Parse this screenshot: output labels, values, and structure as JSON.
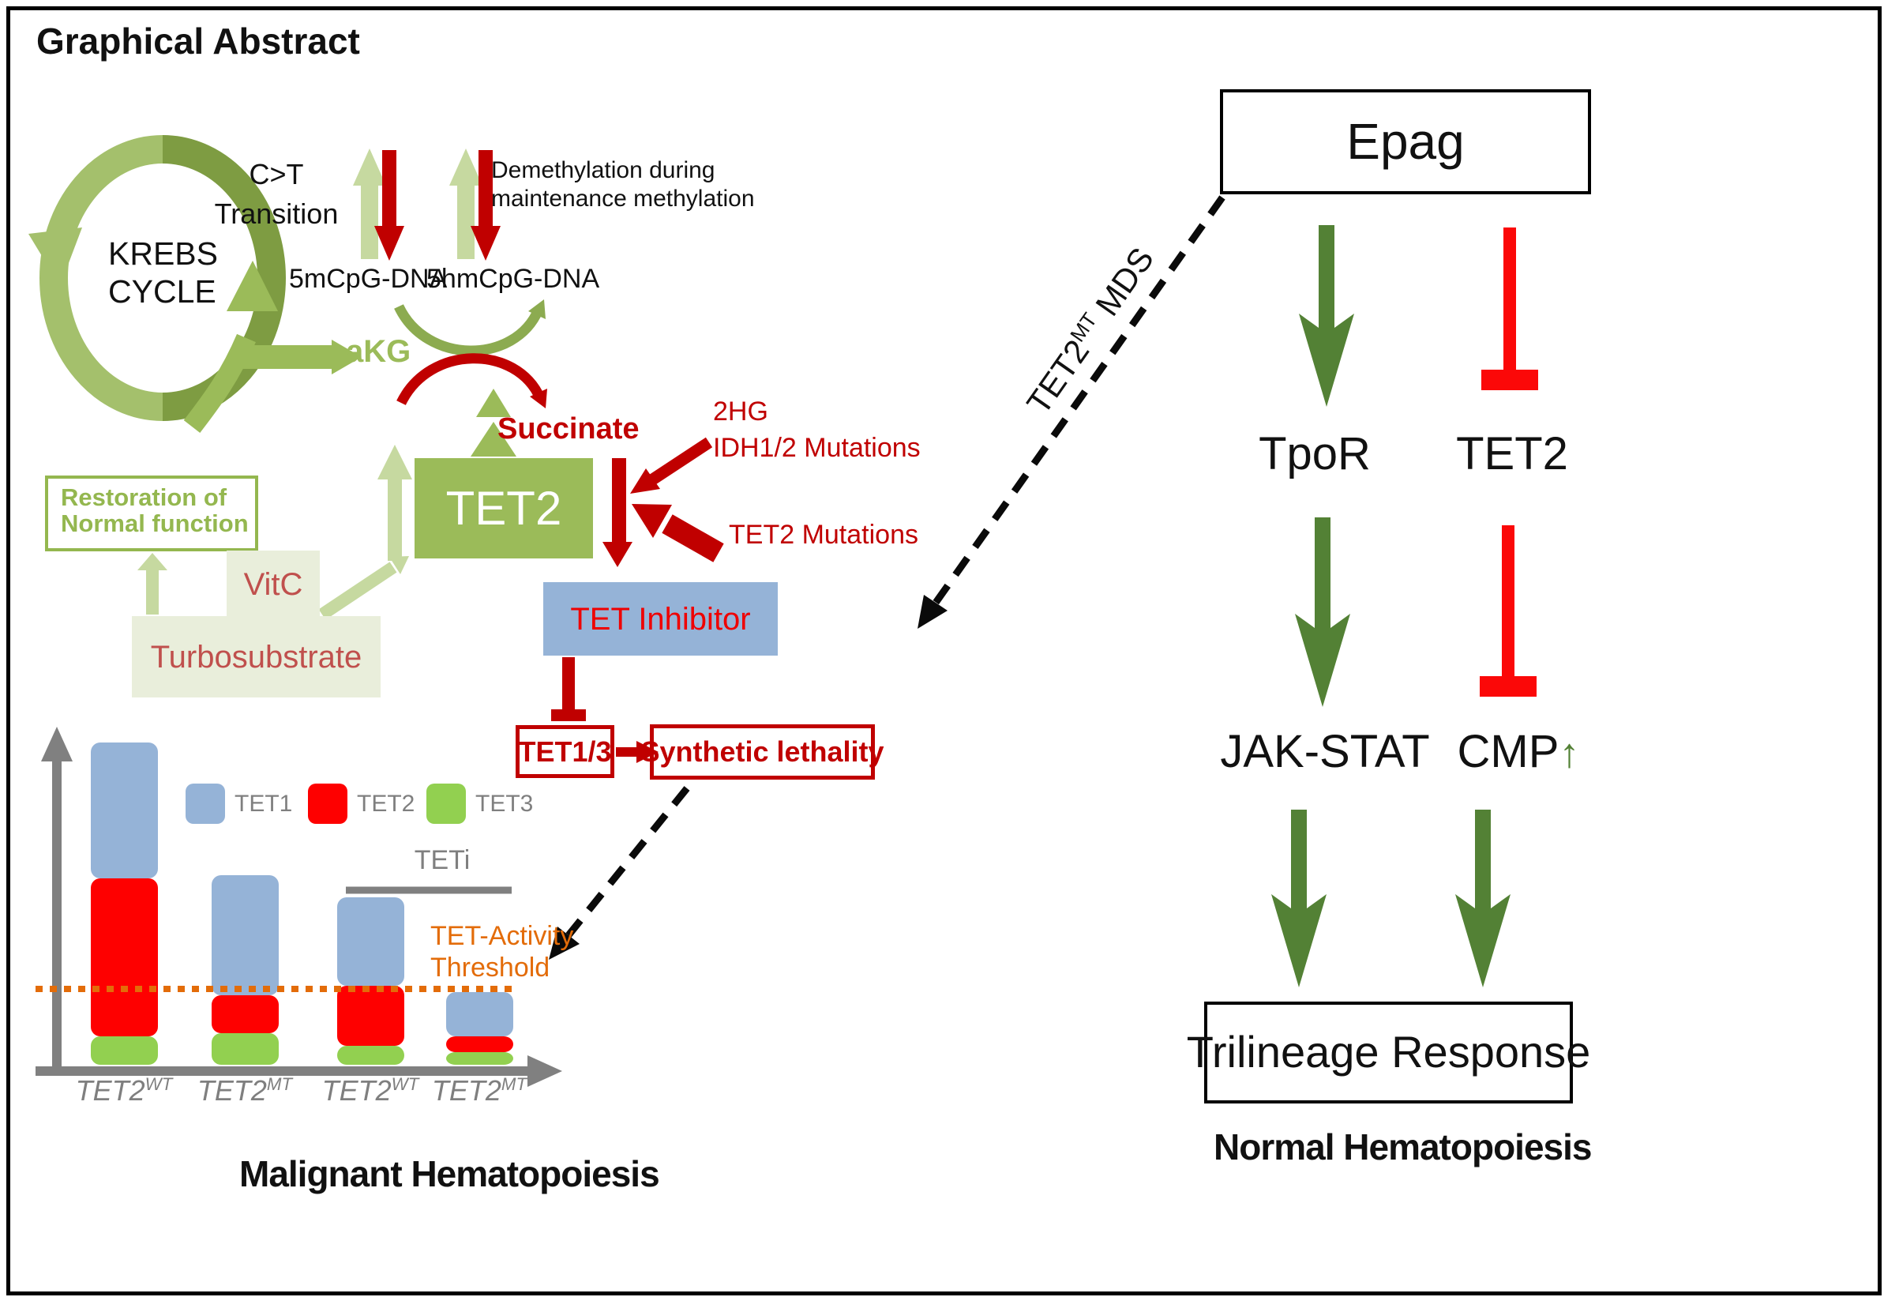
{
  "title": "Graphical Abstract",
  "left_panel": {
    "krebs_line1": "KREBS",
    "krebs_line2": "CYCLE",
    "ct_line1": "C>T",
    "ct_line2": "Transition",
    "m5cpg": "5mCpG-DNA",
    "hm5cpg": "5hmCpG-DNA",
    "demeth_line1": "Demethylation during",
    "demeth_line2": "maintenance methylation",
    "akg": "aKG",
    "succinate": "Succinate",
    "hg2": "2HG",
    "idh": "IDH1/2 Mutations",
    "tet2_box": "TET2",
    "tet2_mutations": "TET2 Mutations",
    "tet_inhibitor": "TET Inhibitor",
    "tet13": "TET1/3",
    "synthetic_lethality": "Synthetic lethality",
    "restoration_line1": "Restoration of",
    "restoration_line2": "Normal function",
    "vitc": "VitC",
    "turbosubstrate": "Turbosubstrate",
    "caption": "Malignant Hematopoiesis"
  },
  "mds_label": {
    "gene": "TET2",
    "sup": "MT",
    "rest": " MDS"
  },
  "chart_data": {
    "type": "bar",
    "stacked": true,
    "categories": [
      "TET2-WT",
      "TET2-MT",
      "TET2-WT +TETi",
      "TET2-MT +TETi"
    ],
    "xlabels": [
      {
        "base": "TET2",
        "sup": "WT"
      },
      {
        "base": "TET2",
        "sup": "MT"
      },
      {
        "base": "TET2",
        "sup": "WT"
      },
      {
        "base": "TET2",
        "sup": "MT"
      }
    ],
    "series": [
      {
        "name": "TET1",
        "color": "#95b3d7",
        "values": [
          43,
          38,
          28,
          14
        ]
      },
      {
        "name": "TET2",
        "color": "#fe0000",
        "values": [
          50,
          12,
          19,
          5
        ]
      },
      {
        "name": "TET3",
        "color": "#92d050",
        "values": [
          9,
          10,
          6,
          4
        ]
      }
    ],
    "ylim": [
      0,
      105
    ],
    "legend_position": "top-inside",
    "grid": false,
    "annotations": {
      "teti_label": "TETi",
      "teti_covers_categories": [
        2,
        3
      ],
      "threshold_label_line1": "TET-Activity",
      "threshold_label_line2": "Threshold",
      "threshold_value": 24,
      "threshold_color": "#e36c09"
    },
    "axis_color": "#808080"
  },
  "right_panel": {
    "epag": "Epag",
    "tpor": "TpoR",
    "tet2": "TET2",
    "jak_stat": "JAK-STAT",
    "cmp": "CMP",
    "cmp_up_arrow": "↑",
    "trilineage": "Trilineage Response",
    "caption": "Normal Hematopoiesis"
  },
  "colors": {
    "tet2_box_green": "#9bbb59",
    "pale_green_arrow": "#c6d9a0",
    "olive_light": "#a4c06c",
    "olive_dark": "#7e9c42",
    "dark_red": "#c00000",
    "bright_red": "#fb0808",
    "inhibitor_blue": "#95b3d7",
    "bar_green": "#92d050",
    "threshold_orange": "#e36c09",
    "axis_gray": "#808080",
    "right_arrow_green": "#538135",
    "substrate_beige": "#e9eedb"
  }
}
